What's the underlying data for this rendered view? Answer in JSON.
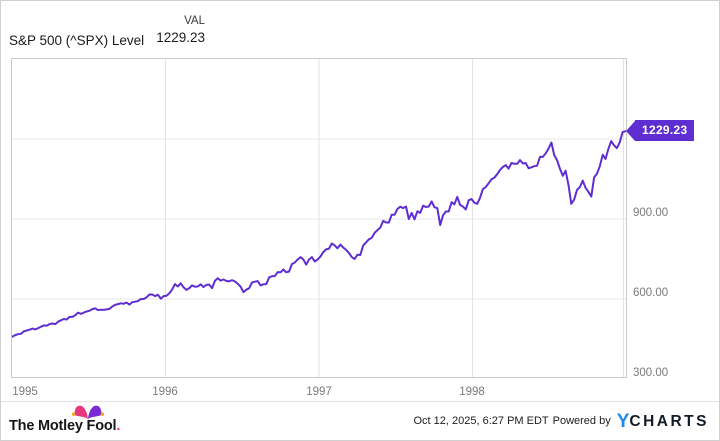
{
  "header": {
    "title": "S&P 500 (^SPX) Level",
    "col_label": "VAL",
    "value": "1229.23"
  },
  "badge": {
    "label": "1229.23",
    "color": "#5f2ed2"
  },
  "footer": {
    "brand": "The Motley Fool",
    "brand_dot": ".",
    "timestamp": "Oct 12, 2025, 6:27 PM EDT",
    "powered_by": "Powered by",
    "ycharts_y": "Y",
    "ycharts_rest": "CHARTS"
  },
  "chart_data": {
    "type": "line",
    "title": "S&P 500 (^SPX) Level",
    "series_name": "S&P 500 (^SPX) Level",
    "line_color": "#5f2ed2",
    "grid": true,
    "x_domain": [
      "Jan 1995",
      "Dec 1998"
    ],
    "x_ticks": [
      "1995",
      "1996",
      "1997",
      "1998"
    ],
    "y_domain": [
      300,
      1500
    ],
    "y_gridline_values": [
      1200,
      900,
      600
    ],
    "y_ticks": [
      {
        "value": 900,
        "label": "900.00"
      },
      {
        "value": 600,
        "label": "600.00"
      },
      {
        "value": 300,
        "label": "300.00"
      }
    ],
    "last_value": 1229.23,
    "values": [
      459,
      465,
      468,
      470,
      479,
      482,
      485,
      489,
      486,
      491,
      496,
      501,
      500,
      506,
      508,
      506,
      515,
      520,
      525,
      523,
      533,
      533,
      539,
      549,
      544,
      549,
      553,
      556,
      562,
      565,
      558,
      560,
      559,
      561,
      563,
      572,
      578,
      581,
      584,
      582,
      587,
      579,
      588,
      590,
      592,
      600,
      600,
      606,
      617,
      617,
      611,
      616,
      601,
      611,
      612,
      621,
      636,
      656,
      647,
      659,
      644,
      634,
      641,
      651,
      646,
      647,
      655,
      645,
      653,
      654,
      641,
      668,
      678,
      669,
      673,
      668,
      666,
      671,
      666,
      657,
      646,
      626,
      635,
      640,
      662,
      665,
      667,
      651,
      655,
      656,
      681,
      686,
      686,
      701,
      700,
      711,
      700,
      703,
      731,
      737,
      748,
      757,
      749,
      729,
      748,
      757,
      741,
      748,
      759,
      776,
      786,
      789,
      808,
      801,
      790,
      804,
      793,
      784,
      773,
      757,
      750,
      766,
      765,
      801,
      812,
      824,
      829,
      848,
      858,
      868,
      893,
      887,
      887,
      916,
      916,
      938,
      946,
      941,
      947,
      900,
      923,
      899,
      929,
      923,
      950,
      945,
      947,
      966,
      944,
      941,
      877,
      914,
      928,
      928,
      963,
      955,
      983,
      953,
      946,
      936,
      970,
      975,
      961,
      957,
      980,
      1012,
      1020,
      1034,
      1049,
      1055,
      1068,
      1084,
      1095,
      1102,
      1089,
      1110,
      1107,
      1107,
      1121,
      1108,
      1110,
      1090,
      1094,
      1098,
      1100,
      1133,
      1133,
      1146,
      1164,
      1187,
      1140,
      1120,
      1089,
      1062,
      1081,
      1027,
      957,
      973,
      1009,
      1020,
      1044,
      1017,
      1002,
      984,
      1056,
      1070,
      1098,
      1141,
      1125,
      1163,
      1192,
      1176,
      1166,
      1188,
      1226,
      1229.23
    ]
  }
}
